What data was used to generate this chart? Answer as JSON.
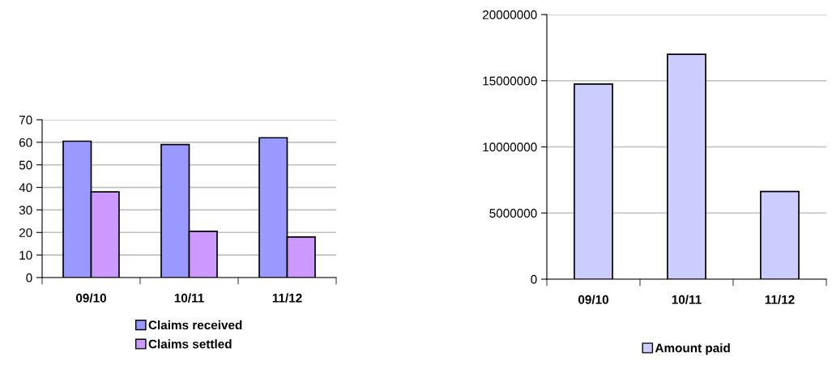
{
  "chart_data": [
    {
      "type": "bar",
      "categories": [
        "09/10",
        "10/11",
        "11/12"
      ],
      "series": [
        {
          "name": "Claims received",
          "color": "#9999ff",
          "values": [
            60.5,
            59,
            62
          ]
        },
        {
          "name": "Claims settled",
          "color": "#cc99ff",
          "values": [
            38,
            20.5,
            18
          ]
        }
      ],
      "ylim": [
        0,
        70
      ],
      "yticks": [
        0,
        10,
        20,
        30,
        40,
        50,
        60,
        70
      ],
      "grid": "y",
      "legend": "bottom"
    },
    {
      "type": "bar",
      "categories": [
        "09/10",
        "10/11",
        "11/12"
      ],
      "series": [
        {
          "name": "Amount paid",
          "color": "#ccccff",
          "values": [
            14750000,
            17000000,
            6630000
          ]
        }
      ],
      "ylim": [
        0,
        20000000
      ],
      "yticks": [
        0,
        5000000,
        10000000,
        15000000,
        20000000
      ],
      "grid": "y",
      "legend": "bottom"
    }
  ]
}
